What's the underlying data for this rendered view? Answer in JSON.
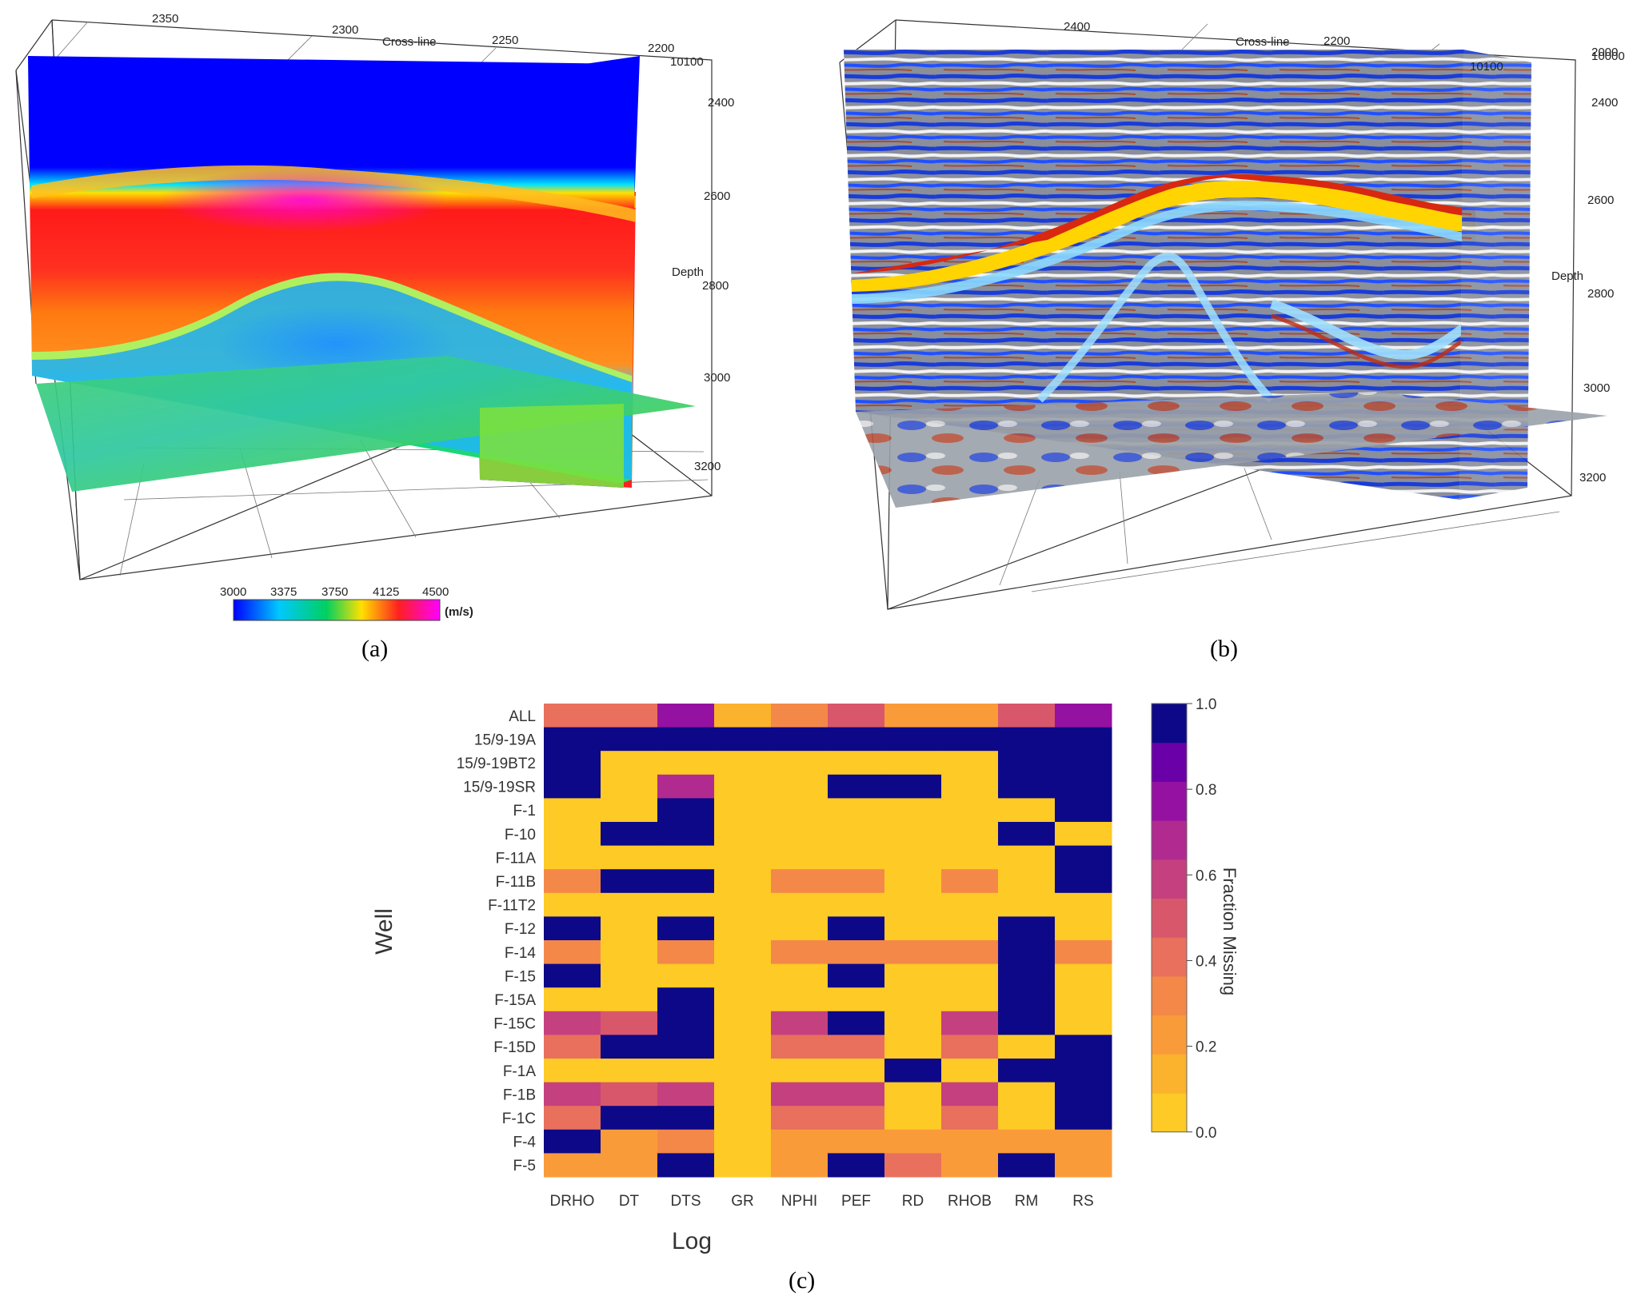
{
  "captions": {
    "a": "(a)",
    "b": "(b)",
    "c": "(c)"
  },
  "panel_a": {
    "crossline_label": "Cross-line",
    "crossline_ticks": [
      "2350",
      "2300",
      "2250",
      "2200"
    ],
    "inline_tick": "10100",
    "depth_label": "Depth",
    "depth_ticks": [
      "2400",
      "2600",
      "2800",
      "3000",
      "3200"
    ],
    "colorbar": {
      "ticks": [
        "3000",
        "3375",
        "3750",
        "4125",
        "4500"
      ],
      "unit": "(m/s)"
    }
  },
  "panel_b": {
    "crossline_label": "Cross-line",
    "crossline_ticks": [
      "2400",
      "2200",
      "2000"
    ],
    "inline_ticks": [
      "10100",
      "10000"
    ],
    "depth_label": "Depth",
    "depth_ticks": [
      "2400",
      "2600",
      "2800",
      "3000",
      "3200"
    ]
  },
  "chart_data": [
    {
      "type": "3d-volume",
      "panel": "a",
      "description_colors": [
        "#0000ff",
        "#00c8ff",
        "#00d060",
        "#ffe000",
        "#ff2020",
        "#ff00ff"
      ],
      "colorbar_range": [
        3000,
        4500
      ],
      "colorbar_unit": "(m/s)",
      "crossline_ticks": [
        2350,
        2300,
        2250,
        2200
      ],
      "inline_tick": 10100,
      "depth_ticks": [
        2400,
        2600,
        2800,
        3000,
        3200
      ]
    },
    {
      "type": "3d-volume",
      "panel": "b",
      "crossline_ticks": [
        2400,
        2200,
        2000
      ],
      "inline_ticks": [
        10100,
        10000
      ],
      "depth_ticks": [
        2400,
        2600,
        2800,
        3000,
        3200
      ]
    },
    {
      "type": "heatmap",
      "panel": "c",
      "xlabel": "Log",
      "ylabel": "Well",
      "x_categories": [
        "DRHO",
        "DT",
        "DTS",
        "GR",
        "NPHI",
        "PEF",
        "RD",
        "RHOB",
        "RM",
        "RS"
      ],
      "y_categories": [
        "ALL",
        "15/9-19A",
        "15/9-19BT2",
        "15/9-19SR",
        "F-1",
        "F-10",
        "F-11A",
        "F-11B",
        "F-11T2",
        "F-12",
        "F-14",
        "F-15",
        "F-15A",
        "F-15C",
        "F-15D",
        "F-1A",
        "F-1B",
        "F-1C",
        "F-4",
        "F-5"
      ],
      "values": [
        [
          0.35,
          0.35,
          0.75,
          0.05,
          0.25,
          0.45,
          0.15,
          0.15,
          0.45,
          0.8
        ],
        [
          1.0,
          1.0,
          1.0,
          1.0,
          1.0,
          1.0,
          1.0,
          1.0,
          1.0,
          1.0
        ],
        [
          1.0,
          0.0,
          0.0,
          0.0,
          0.0,
          0.0,
          0.0,
          0.0,
          1.0,
          1.0
        ],
        [
          1.0,
          0.0,
          0.65,
          0.0,
          0.0,
          1.0,
          1.0,
          0.0,
          1.0,
          1.0
        ],
        [
          0.0,
          0.0,
          1.0,
          0.0,
          0.0,
          0.0,
          0.0,
          0.0,
          0.0,
          1.0
        ],
        [
          0.0,
          1.0,
          1.0,
          0.0,
          0.0,
          0.0,
          0.0,
          0.0,
          1.0,
          0.0
        ],
        [
          0.0,
          0.0,
          0.0,
          0.0,
          0.0,
          0.0,
          0.0,
          0.0,
          0.0,
          1.0
        ],
        [
          0.25,
          1.0,
          1.0,
          0.0,
          0.25,
          0.25,
          0.0,
          0.25,
          0.0,
          1.0
        ],
        [
          0.0,
          0.0,
          0.0,
          0.0,
          0.0,
          0.0,
          0.0,
          0.0,
          0.0,
          0.0
        ],
        [
          1.0,
          0.0,
          1.0,
          0.0,
          0.0,
          1.0,
          0.0,
          0.0,
          1.0,
          0.0
        ],
        [
          0.25,
          0.0,
          0.25,
          0.0,
          0.25,
          0.25,
          0.25,
          0.25,
          1.0,
          0.25
        ],
        [
          1.0,
          0.0,
          0.0,
          0.0,
          0.0,
          1.0,
          0.0,
          0.0,
          1.0,
          0.0
        ],
        [
          0.0,
          0.0,
          1.0,
          0.0,
          0.0,
          0.0,
          0.0,
          0.0,
          1.0,
          0.0
        ],
        [
          0.55,
          0.45,
          1.0,
          0.0,
          0.55,
          1.0,
          0.0,
          0.55,
          1.0,
          0.0
        ],
        [
          0.35,
          1.0,
          1.0,
          0.0,
          0.35,
          0.35,
          0.0,
          0.35,
          0.0,
          1.0
        ],
        [
          0.0,
          0.0,
          0.0,
          0.0,
          0.0,
          0.0,
          1.0,
          0.0,
          1.0,
          1.0
        ],
        [
          0.55,
          0.45,
          0.55,
          0.0,
          0.55,
          0.55,
          0.0,
          0.55,
          0.0,
          1.0
        ],
        [
          0.35,
          1.0,
          1.0,
          0.0,
          0.35,
          0.35,
          0.0,
          0.35,
          0.0,
          1.0
        ],
        [
          1.0,
          0.15,
          0.25,
          0.0,
          0.15,
          0.15,
          0.15,
          0.15,
          0.15,
          0.15
        ],
        [
          0.15,
          0.15,
          1.0,
          0.0,
          0.15,
          1.0,
          0.4,
          0.15,
          1.0,
          0.15
        ]
      ],
      "colorbar": {
        "label": "Fraction Missing",
        "range": [
          0.0,
          1.0
        ],
        "ticks": [
          "0.0",
          "0.2",
          "0.4",
          "0.6",
          "0.8",
          "1.0"
        ],
        "colors": [
          "#fdca26",
          "#fbb22c",
          "#fa9b3a",
          "#f48849",
          "#e8705d",
          "#d8576b",
          "#c5407e",
          "#b12a90",
          "#9511a1",
          "#6a00a8",
          "#0d0887"
        ]
      }
    }
  ]
}
